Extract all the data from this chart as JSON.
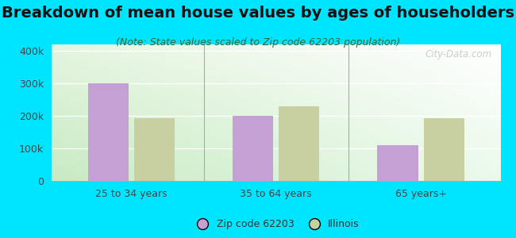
{
  "title": "Breakdown of mean house values by ages of householders",
  "subtitle": "(Note: State values scaled to Zip code 62203 population)",
  "categories": [
    "25 to 34 years",
    "35 to 64 years",
    "65 years+"
  ],
  "zip_values": [
    300000,
    200000,
    110000
  ],
  "state_values": [
    193000,
    228000,
    193000
  ],
  "zip_color": "#c4a0d4",
  "state_color": "#c8cfa0",
  "background_outer": "#00e5ff",
  "background_inner_topleft": "#d4edd4",
  "background_inner_topright": "#ffffff",
  "background_inner_bottom": "#c8e8c0",
  "ylim": [
    0,
    420000
  ],
  "yticks": [
    0,
    100000,
    200000,
    300000,
    400000
  ],
  "ytick_labels": [
    "0",
    "100k",
    "200k",
    "300k",
    "400k"
  ],
  "legend_zip_label": "Zip code 62203",
  "legend_state_label": "Illinois",
  "watermark": "City-Data.com",
  "title_fontsize": 14,
  "subtitle_fontsize": 9,
  "tick_fontsize": 9,
  "legend_fontsize": 9,
  "bar_width": 0.28,
  "bar_gap": 0.04
}
